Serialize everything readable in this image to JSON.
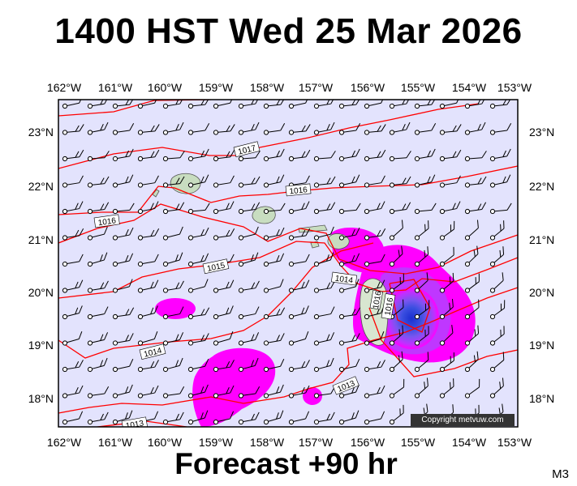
{
  "title": "1400 HST Wed 25 Mar 2026",
  "footer": "Forecast +90 hr",
  "model": "M3",
  "copyright": "Copyright metvuw.com",
  "map": {
    "lon_labels": [
      "162°W",
      "161°W",
      "160°W",
      "159°W",
      "158°W",
      "157°W",
      "156°W",
      "155°W",
      "154°W",
      "153°W"
    ],
    "lat_labels": [
      "23°N",
      "22°N",
      "21°N",
      "20°N",
      "19°N",
      "18°N"
    ],
    "isobar_labels": [
      "1017",
      "1016",
      "1016",
      "1015",
      "1014",
      "1014",
      "1013",
      "1016",
      "1016",
      "1013"
    ],
    "colors": {
      "background": "#e3e3fd",
      "isobar": "#ff0000",
      "rain_light": "#ff00ff",
      "rain_mid": "#9933ff",
      "rain_heavy": "#1a2fd0",
      "land": "#c8ddc0"
    }
  }
}
